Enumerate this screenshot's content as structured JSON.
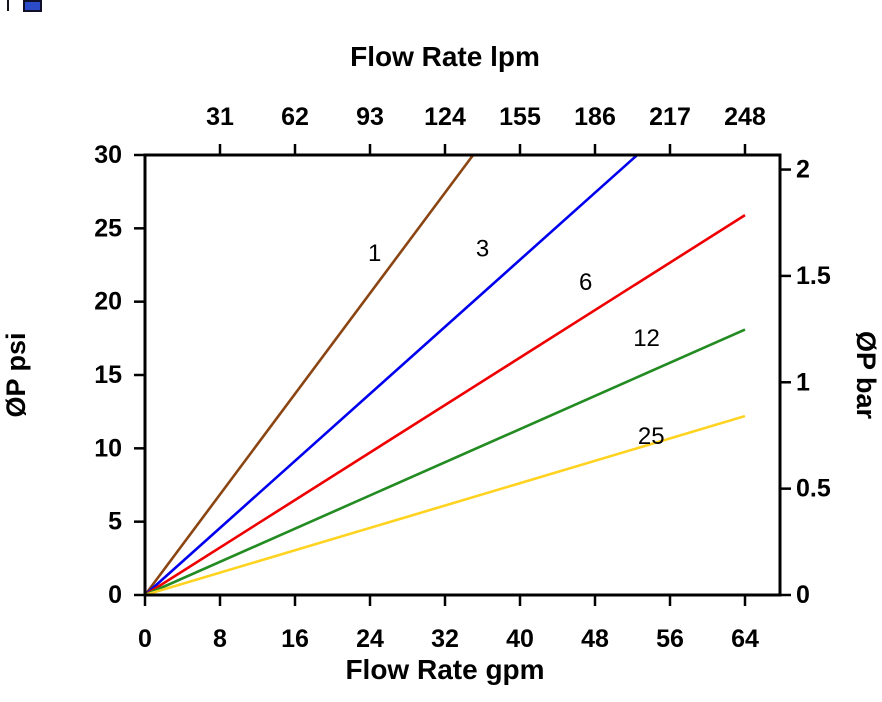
{
  "page": {
    "background": "#ffffff"
  },
  "corner_artifact": {
    "color": "#2b4bc8"
  },
  "chart_data": {
    "type": "line",
    "title": "",
    "grid": false,
    "axes": {
      "top": {
        "label": "Flow Rate lpm",
        "ticks": [
          31,
          62,
          93,
          124,
          155,
          186,
          217,
          248
        ],
        "lpm_per_gpm": 3.875
      },
      "bottom": {
        "label": "Flow Rate gpm",
        "ticks": [
          0,
          8,
          16,
          24,
          32,
          40,
          48,
          56,
          64
        ],
        "range": [
          0,
          67.7
        ]
      },
      "left": {
        "label": "ØP psi",
        "ticks": [
          0,
          5,
          10,
          15,
          20,
          25,
          30
        ],
        "range": [
          0,
          30
        ]
      },
      "right": {
        "label": "ØP bar",
        "ticks": [
          0,
          0.5,
          1,
          1.5,
          2
        ],
        "psi_per_bar": 14.5038
      }
    },
    "series": [
      {
        "label": "1",
        "color": "#8b4513",
        "points_gpm_psi": [
          [
            0,
            0
          ],
          [
            35,
            30
          ]
        ],
        "label_pos_gpm_psi": [
          24.5,
          23.3
        ]
      },
      {
        "label": "3",
        "color": "#0000ee",
        "points_gpm_psi": [
          [
            0,
            0
          ],
          [
            52.5,
            30
          ]
        ],
        "label_pos_gpm_psi": [
          36,
          23.6
        ]
      },
      {
        "label": "6",
        "color": "#ee0000",
        "points_gpm_psi": [
          [
            0,
            0
          ],
          [
            64,
            25.9
          ]
        ],
        "label_pos_gpm_psi": [
          47,
          21.3
        ]
      },
      {
        "label": "12",
        "color": "#228b22",
        "points_gpm_psi": [
          [
            0,
            0
          ],
          [
            64,
            18.1
          ]
        ],
        "label_pos_gpm_psi": [
          53.5,
          17.5
        ]
      },
      {
        "label": "25",
        "color": "#ffd320",
        "points_gpm_psi": [
          [
            0,
            0
          ],
          [
            64,
            12.2
          ]
        ],
        "label_pos_gpm_psi": [
          54,
          10.8
        ]
      }
    ]
  }
}
